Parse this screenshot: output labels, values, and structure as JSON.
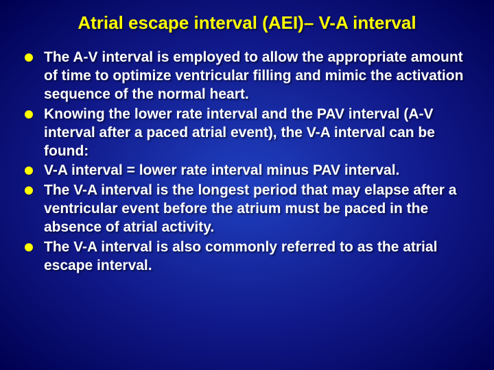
{
  "slide": {
    "title": "Atrial escape interval (AEI)– V-A interval",
    "title_color": "#ffff00",
    "text_color": "#ffffff",
    "bullet_color": "#ffff00",
    "background_gradient": [
      "#2040c0",
      "#101888",
      "#000050"
    ],
    "title_fontsize": 26,
    "body_fontsize": 21,
    "bullets": [
      "The A-V interval is employed to allow the appropriate amount of time to optimize ventricular filling and mimic the activation sequence of the normal heart.",
      "Knowing the lower rate interval and the PAV interval (A-V interval after a paced atrial event), the V-A interval can be found:",
      "V-A interval = lower rate interval minus PAV interval.",
      "The V-A interval is the longest period that may elapse after a ventricular event before the atrium must be paced in the absence of atrial activity.",
      "The V-A interval is also commonly referred to as the atrial escape interval."
    ]
  }
}
